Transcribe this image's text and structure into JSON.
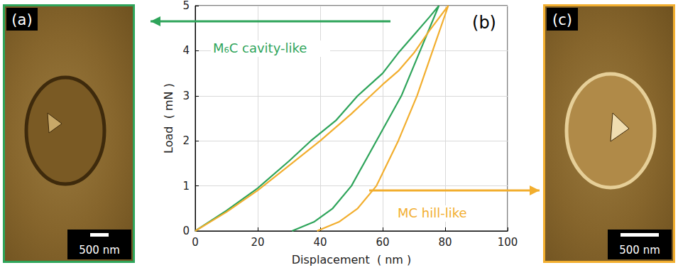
{
  "chart_data": {
    "type": "line",
    "label": "(b)",
    "xlabel": "Displacement  ( nm )",
    "ylabel": "Load  ( mN )",
    "xlim": [
      0,
      100
    ],
    "xticks": [
      0,
      20,
      40,
      60,
      80,
      100
    ],
    "ylim": [
      0,
      5
    ],
    "yticks": [
      0,
      1,
      2,
      3,
      4,
      5
    ],
    "grid": true,
    "series": [
      {
        "name": "M₆C cavity-like",
        "color": "#2ea45a",
        "x": [
          0,
          10,
          20,
          30,
          37,
          45,
          52,
          60,
          65,
          70,
          75,
          78,
          72,
          66,
          58,
          50,
          44,
          38,
          31
        ],
        "values": [
          0,
          0.45,
          0.95,
          1.55,
          2.0,
          2.45,
          3.0,
          3.5,
          3.95,
          4.35,
          4.75,
          5.0,
          4.0,
          3.0,
          2.0,
          1.0,
          0.5,
          0.2,
          0
        ]
      },
      {
        "name": "MC hill-like",
        "color": "#f2ae2e",
        "x": [
          0,
          10,
          20,
          30,
          40,
          50,
          60,
          65,
          70,
          75,
          81,
          76,
          71,
          65,
          58,
          52,
          46,
          39
        ],
        "values": [
          0,
          0.42,
          0.9,
          1.45,
          2.0,
          2.6,
          3.25,
          3.55,
          3.95,
          4.45,
          5.0,
          4.0,
          3.0,
          2.0,
          1.0,
          0.5,
          0.2,
          0
        ]
      }
    ]
  },
  "panels": [
    {
      "label": "(a)",
      "scale_bar": "500 nm",
      "color": "#2ea45a"
    },
    {
      "label": "(c)",
      "scale_bar": "500 nm",
      "color": "#f2ae2e"
    }
  ]
}
